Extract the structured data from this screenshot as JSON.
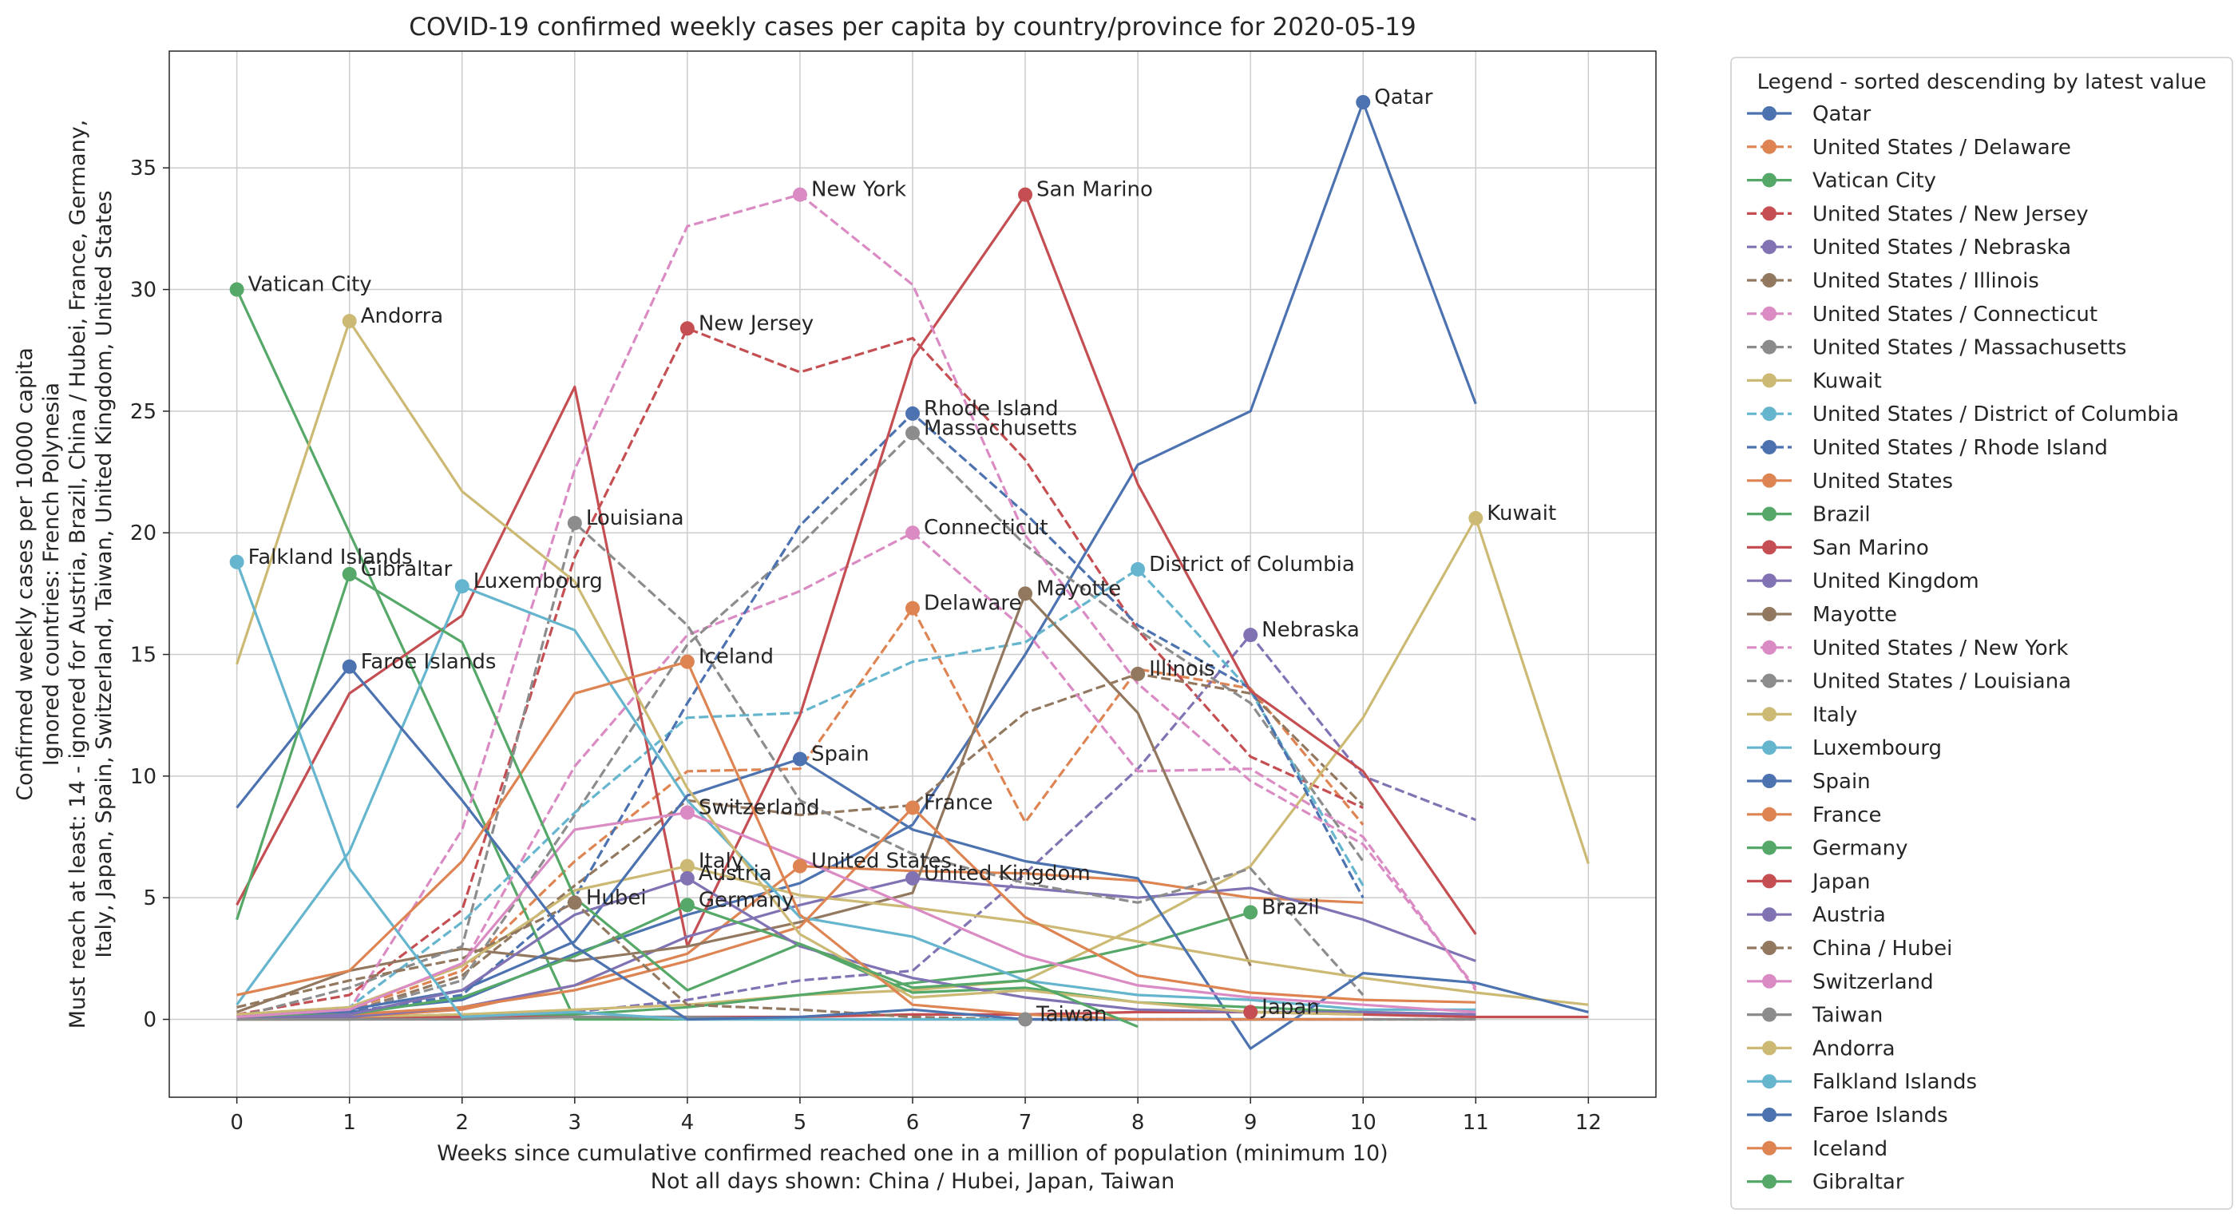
{
  "chart_data": {
    "type": "line",
    "title": "COVID-19 confirmed weekly cases per capita by country/province for 2020-05-19",
    "xlabel": [
      "Weeks since cumulative confirmed reached one in a million of population (minimum 10)",
      "Not all days shown: China / Hubei, Japan, Taiwan"
    ],
    "ylabel": [
      "Confirmed weekly cases per 10000 capita",
      "Ignored countries: French Polynesia",
      "Must reach at least: 14 - ignored for Austria, Brazil, China / Hubei, France, Germany,",
      "Italy, Japan, Spain, Switzerland, Taiwan, United Kingdom, United States"
    ],
    "xlim": [
      -0.6,
      12.6
    ],
    "ylim": [
      -3.2,
      39.8
    ],
    "xticks": [
      0,
      1,
      2,
      3,
      4,
      5,
      6,
      7,
      8,
      9,
      10,
      11,
      12
    ],
    "yticks": [
      0,
      5,
      10,
      15,
      20,
      25,
      30,
      35
    ],
    "grid": true,
    "legend_title": "Legend - sorted descending by latest value",
    "legend_position": "outside right",
    "series": [
      {
        "name": "Qatar",
        "color": "#4c72b0",
        "dash": false,
        "x": [
          0,
          1,
          2,
          3,
          4,
          5,
          6,
          7,
          8,
          9,
          10,
          11
        ],
        "y": [
          0.1,
          0.3,
          0.8,
          2.7,
          4.3,
          5.6,
          8.0,
          15.0,
          22.8,
          25.0,
          37.7,
          25.3
        ],
        "marker_x": 10,
        "marker_y": 37.7,
        "label": "Qatar"
      },
      {
        "name": "United States / Delaware",
        "color": "#dd8452",
        "dash": true,
        "x": [
          0,
          1,
          2,
          3,
          4,
          5,
          6,
          7,
          8,
          9,
          10
        ],
        "y": [
          0.1,
          0.4,
          2.0,
          6.5,
          10.2,
          10.3,
          16.9,
          8.1,
          14.4,
          13.6,
          8.0
        ],
        "marker_x": 6,
        "marker_y": 16.9,
        "label": "Delaware"
      },
      {
        "name": "Vatican City",
        "color": "#55a868",
        "dash": false,
        "x": [
          0,
          1,
          2,
          3,
          4,
          5
        ],
        "y": [
          30.0,
          20.0,
          10.0,
          0.0,
          0.0,
          0.0
        ],
        "marker_x": 0,
        "marker_y": 30.0,
        "label": "Vatican City"
      },
      {
        "name": "United States / New Jersey",
        "color": "#c44e52",
        "dash": true,
        "x": [
          0,
          1,
          2,
          3,
          4,
          5,
          6,
          7,
          8,
          9,
          10
        ],
        "y": [
          0.2,
          1.0,
          4.5,
          19.0,
          28.4,
          26.6,
          28.0,
          23.0,
          16.0,
          10.8,
          8.7
        ],
        "marker_x": 4,
        "marker_y": 28.4,
        "label": "New Jersey"
      },
      {
        "name": "United States / Nebraska",
        "color": "#8172b3",
        "dash": true,
        "x": [
          0,
          1,
          2,
          3,
          4,
          5,
          6,
          7,
          8,
          9,
          10,
          11
        ],
        "y": [
          0.0,
          0.1,
          0.2,
          0.3,
          0.8,
          1.6,
          2.0,
          6.0,
          10.3,
          15.8,
          10.0,
          8.2
        ],
        "marker_x": 9,
        "marker_y": 15.8,
        "label": "Nebraska"
      },
      {
        "name": "United States / Illinois",
        "color": "#937860",
        "dash": true,
        "x": [
          0,
          1,
          2,
          3,
          4,
          5,
          6,
          7,
          8,
          9,
          10
        ],
        "y": [
          0.1,
          0.3,
          1.8,
          5.5,
          9.0,
          8.4,
          8.8,
          12.6,
          14.2,
          13.4,
          8.8
        ],
        "marker_x": 8,
        "marker_y": 14.2,
        "label": "Illinois"
      },
      {
        "name": "United States / Connecticut",
        "color": "#da8bc3",
        "dash": true,
        "x": [
          0,
          1,
          2,
          3,
          4,
          5,
          6,
          7,
          8,
          9,
          10,
          11
        ],
        "y": [
          0.2,
          0.5,
          2.2,
          10.4,
          15.8,
          17.6,
          20.0,
          16.0,
          10.2,
          10.3,
          7.5,
          1.2
        ],
        "marker_x": 6,
        "marker_y": 20.0,
        "label": "Connecticut"
      },
      {
        "name": "United States / Massachusetts",
        "color": "#8c8c8c",
        "dash": true,
        "x": [
          0,
          1,
          2,
          3,
          4,
          5,
          6,
          7,
          8,
          9,
          10
        ],
        "y": [
          0.1,
          0.3,
          1.6,
          8.4,
          15.4,
          19.5,
          24.1,
          19.5,
          16.0,
          13.0,
          6.5
        ],
        "marker_x": 6,
        "marker_y": 24.1,
        "label": "Massachusetts"
      },
      {
        "name": "Kuwait",
        "color": "#ccb974",
        "dash": false,
        "x": [
          0,
          1,
          2,
          3,
          4,
          5,
          6,
          7,
          8,
          9,
          10,
          11,
          12
        ],
        "y": [
          0.1,
          0.1,
          0.2,
          0.4,
          0.6,
          1.0,
          1.2,
          1.6,
          3.8,
          6.3,
          12.4,
          20.6,
          6.4
        ],
        "marker_x": 11,
        "marker_y": 20.6,
        "label": "Kuwait"
      },
      {
        "name": "United States / District of Columbia",
        "color": "#64b5cd",
        "dash": true,
        "x": [
          0,
          1,
          2,
          3,
          4,
          5,
          6,
          7,
          8,
          9,
          10
        ],
        "y": [
          0.1,
          0.5,
          4.0,
          8.5,
          12.4,
          12.6,
          14.7,
          15.5,
          18.5,
          13.5,
          5.5
        ],
        "marker_x": 8,
        "marker_y": 18.5,
        "label": "District of Columbia"
      },
      {
        "name": "United States / Rhode Island",
        "color": "#4c72b0",
        "dash": true,
        "x": [
          0,
          1,
          2,
          3,
          4,
          5,
          6,
          7,
          8,
          9,
          10
        ],
        "y": [
          0.1,
          0.3,
          1.0,
          5.0,
          13.0,
          20.3,
          24.9,
          20.8,
          16.2,
          13.6,
          5.0
        ],
        "marker_x": 6,
        "marker_y": 24.9,
        "label": "Rhode Island"
      },
      {
        "name": "United States",
        "color": "#dd8452",
        "dash": false,
        "x": [
          0,
          1,
          2,
          3,
          4,
          5,
          6,
          7,
          8,
          9,
          10
        ],
        "y": [
          0.1,
          0.1,
          0.4,
          1.4,
          2.7,
          6.3,
          6.1,
          6.0,
          5.7,
          5.0,
          4.8
        ],
        "marker_x": 5,
        "marker_y": 6.3,
        "label": "United States"
      },
      {
        "name": "Brazil",
        "color": "#55a868",
        "dash": false,
        "x": [
          0,
          1,
          2,
          3,
          4,
          5,
          6,
          7,
          8,
          9
        ],
        "y": [
          0.0,
          0.0,
          0.1,
          0.2,
          0.5,
          1.0,
          1.5,
          2.0,
          3.0,
          4.4
        ],
        "marker_x": 9,
        "marker_y": 4.4,
        "label": "Brazil"
      },
      {
        "name": "San Marino",
        "color": "#c44e52",
        "dash": false,
        "x": [
          0,
          1,
          2,
          3,
          4,
          5,
          6,
          7,
          8,
          9,
          10,
          11
        ],
        "y": [
          4.7,
          13.4,
          16.6,
          26.0,
          3.0,
          12.5,
          27.2,
          33.9,
          22.0,
          13.5,
          10.2,
          3.5
        ],
        "marker_x": 7,
        "marker_y": 33.9,
        "label": "San Marino"
      },
      {
        "name": "United Kingdom",
        "color": "#8172b3",
        "dash": false,
        "x": [
          0,
          1,
          2,
          3,
          4,
          5,
          6,
          7,
          8,
          9,
          10,
          11
        ],
        "y": [
          0.0,
          0.1,
          0.5,
          1.4,
          3.4,
          4.7,
          5.8,
          5.4,
          5.0,
          5.4,
          4.1,
          2.4
        ],
        "marker_x": 6,
        "marker_y": 5.8,
        "label": "United Kingdom"
      },
      {
        "name": "Mayotte",
        "color": "#937860",
        "dash": false,
        "x": [
          0,
          1,
          2,
          3,
          4,
          5,
          6,
          7,
          8,
          9
        ],
        "y": [
          0.3,
          2.0,
          2.9,
          2.4,
          3.0,
          4.0,
          5.2,
          17.5,
          12.6,
          2.2
        ],
        "marker_x": 7,
        "marker_y": 17.5,
        "label": "Mayotte"
      },
      {
        "name": "United States / New York",
        "color": "#da8bc3",
        "dash": true,
        "x": [
          0,
          1,
          2,
          3,
          4,
          5,
          6,
          7,
          8,
          9,
          10,
          11
        ],
        "y": [
          0.2,
          0.4,
          7.8,
          22.6,
          32.6,
          33.9,
          30.2,
          19.9,
          13.8,
          9.8,
          7.2,
          1.3
        ],
        "marker_x": 5,
        "marker_y": 33.9,
        "label": "New York"
      },
      {
        "name": "United States / Louisiana",
        "color": "#8c8c8c",
        "dash": true,
        "x": [
          0,
          1,
          2,
          3,
          4,
          5,
          6,
          7,
          8,
          9,
          10
        ],
        "y": [
          0.1,
          1.3,
          3.0,
          20.4,
          16.2,
          9.0,
          6.8,
          5.6,
          4.8,
          6.2,
          1.0
        ],
        "marker_x": 3,
        "marker_y": 20.4,
        "label": "Louisiana"
      },
      {
        "name": "Italy",
        "color": "#ccb974",
        "dash": false,
        "x": [
          0,
          1,
          2,
          3,
          4,
          5,
          6,
          7,
          8,
          9,
          10,
          11,
          12
        ],
        "y": [
          0.2,
          0.5,
          2.2,
          5.3,
          6.3,
          5.1,
          4.6,
          4.0,
          3.2,
          2.4,
          1.7,
          1.1,
          0.6
        ],
        "marker_x": 4,
        "marker_y": 6.3,
        "label": "Italy"
      },
      {
        "name": "Luxembourg",
        "color": "#64b5cd",
        "dash": false,
        "x": [
          0,
          1,
          2,
          3,
          4,
          5,
          6,
          7,
          8,
          9,
          10,
          11
        ],
        "y": [
          0.6,
          6.9,
          17.8,
          16.0,
          9.0,
          4.2,
          3.4,
          1.6,
          1.0,
          0.8,
          0.4,
          0.4
        ],
        "marker_x": 2,
        "marker_y": 17.8,
        "label": "Luxembourg"
      },
      {
        "name": "Spain",
        "color": "#4c72b0",
        "dash": false,
        "x": [
          0,
          1,
          2,
          3,
          4,
          5,
          6,
          7,
          8,
          9,
          10,
          11,
          12
        ],
        "y": [
          0.1,
          0.4,
          1.2,
          3.2,
          9.2,
          10.7,
          7.8,
          6.5,
          5.8,
          -1.2,
          1.9,
          1.5,
          0.3
        ],
        "marker_x": 5,
        "marker_y": 10.7,
        "label": "Spain"
      },
      {
        "name": "France",
        "color": "#dd8452",
        "dash": false,
        "x": [
          0,
          1,
          2,
          3,
          4,
          5,
          6,
          7,
          8,
          9,
          10,
          11
        ],
        "y": [
          0.1,
          0.2,
          0.5,
          1.2,
          2.4,
          3.8,
          8.7,
          4.2,
          1.8,
          1.1,
          0.8,
          0.7
        ],
        "marker_x": 6,
        "marker_y": 8.7,
        "label": "France"
      },
      {
        "name": "Germany",
        "color": "#55a868",
        "dash": false,
        "x": [
          0,
          1,
          2,
          3,
          4,
          5,
          6,
          7,
          8,
          9,
          10,
          11
        ],
        "y": [
          0.1,
          0.2,
          0.9,
          2.6,
          4.7,
          3.1,
          1.1,
          1.3,
          0.7,
          0.5,
          0.3,
          0.2
        ],
        "marker_x": 4,
        "marker_y": 4.7,
        "label": "Germany"
      },
      {
        "name": "Japan",
        "color": "#c44e52",
        "dash": false,
        "x": [
          0,
          1,
          2,
          3,
          4,
          5,
          6,
          7,
          8,
          9,
          10,
          11,
          12
        ],
        "y": [
          0.0,
          0.0,
          0.1,
          0.1,
          0.1,
          0.1,
          0.2,
          0.2,
          0.3,
          0.3,
          0.2,
          0.1,
          0.1
        ],
        "marker_x": 9,
        "marker_y": 0.3,
        "label": "Japan"
      },
      {
        "name": "Austria",
        "color": "#8172b3",
        "dash": false,
        "x": [
          0,
          1,
          2,
          3,
          4,
          5,
          6,
          7,
          8,
          9,
          10,
          11
        ],
        "y": [
          0.0,
          0.2,
          1.2,
          4.3,
          5.8,
          3.0,
          1.7,
          0.9,
          0.4,
          0.3,
          0.3,
          0.2
        ],
        "marker_x": 4,
        "marker_y": 5.8,
        "label": "Austria"
      },
      {
        "name": "China / Hubei",
        "color": "#937860",
        "dash": true,
        "x": [
          0,
          1,
          2,
          3,
          4,
          5,
          6,
          7,
          8,
          9,
          10,
          11
        ],
        "y": [
          0.5,
          1.6,
          2.5,
          4.8,
          0.6,
          0.4,
          0.1,
          0.0,
          0.0,
          0.0,
          0.0,
          0.0
        ],
        "marker_x": 3,
        "marker_y": 4.8,
        "label": "Hubei"
      },
      {
        "name": "Switzerland",
        "color": "#da8bc3",
        "dash": false,
        "x": [
          0,
          1,
          2,
          3,
          4,
          5,
          6,
          7,
          8,
          9,
          10,
          11
        ],
        "y": [
          0.1,
          0.4,
          2.3,
          7.8,
          8.5,
          6.6,
          4.6,
          2.6,
          1.4,
          0.9,
          0.6,
          0.3
        ],
        "marker_x": 4,
        "marker_y": 8.5,
        "label": "Switzerland"
      },
      {
        "name": "Taiwan",
        "color": "#8c8c8c",
        "dash": false,
        "x": [
          0,
          1,
          2,
          3,
          4,
          5,
          6,
          7,
          8,
          9,
          10,
          11
        ],
        "y": [
          0.0,
          0.0,
          0.0,
          0.1,
          0.1,
          0.0,
          0.0,
          0.0,
          0.0,
          0.0,
          0.0,
          0.0
        ],
        "marker_x": 7,
        "marker_y": 0.0,
        "label": "Taiwan"
      },
      {
        "name": "Andorra",
        "color": "#ccb974",
        "dash": false,
        "x": [
          0,
          1,
          2,
          3,
          4,
          5,
          6,
          7,
          8,
          9,
          10
        ],
        "y": [
          14.6,
          28.7,
          21.7,
          18.0,
          9.5,
          3.5,
          0.9,
          1.2,
          0.7,
          0.3,
          0.2
        ],
        "marker_x": 1,
        "marker_y": 28.7,
        "label": "Andorra"
      },
      {
        "name": "Falkland Islands",
        "color": "#64b5cd",
        "dash": false,
        "x": [
          0,
          1,
          2,
          3,
          4,
          5,
          6,
          7,
          8,
          9,
          10
        ],
        "y": [
          18.8,
          6.2,
          0.1,
          0.3,
          0.0,
          0.0,
          0.0,
          0.0,
          0.0,
          0.0,
          0.0
        ],
        "marker_x": 0,
        "marker_y": 18.8,
        "label": "Falkland Islands"
      },
      {
        "name": "Faroe Islands",
        "color": "#4c72b0",
        "dash": false,
        "x": [
          0,
          1,
          2,
          3,
          4,
          5,
          6,
          7,
          8,
          9,
          10
        ],
        "y": [
          8.7,
          14.5,
          9.0,
          3.0,
          0.0,
          0.1,
          0.4,
          0.0,
          0.0,
          0.0,
          0.0
        ],
        "marker_x": 1,
        "marker_y": 14.5,
        "label": "Faroe Islands"
      },
      {
        "name": "Iceland",
        "color": "#dd8452",
        "dash": false,
        "x": [
          0,
          1,
          2,
          3,
          4,
          5,
          6,
          7,
          8,
          9,
          10
        ],
        "y": [
          1.0,
          2.0,
          6.5,
          13.4,
          14.7,
          4.3,
          0.6,
          0.2,
          0.0,
          0.0,
          0.0
        ],
        "marker_x": 4,
        "marker_y": 14.7,
        "label": "Iceland"
      },
      {
        "name": "Gibraltar",
        "color": "#55a868",
        "dash": false,
        "x": [
          0,
          1,
          2,
          3,
          4,
          5,
          6,
          7,
          8
        ],
        "y": [
          4.1,
          18.3,
          15.5,
          5.0,
          1.2,
          3.1,
          1.3,
          1.6,
          -0.3
        ],
        "marker_x": 1,
        "marker_y": 18.3,
        "label": "Gibraltar"
      }
    ]
  }
}
